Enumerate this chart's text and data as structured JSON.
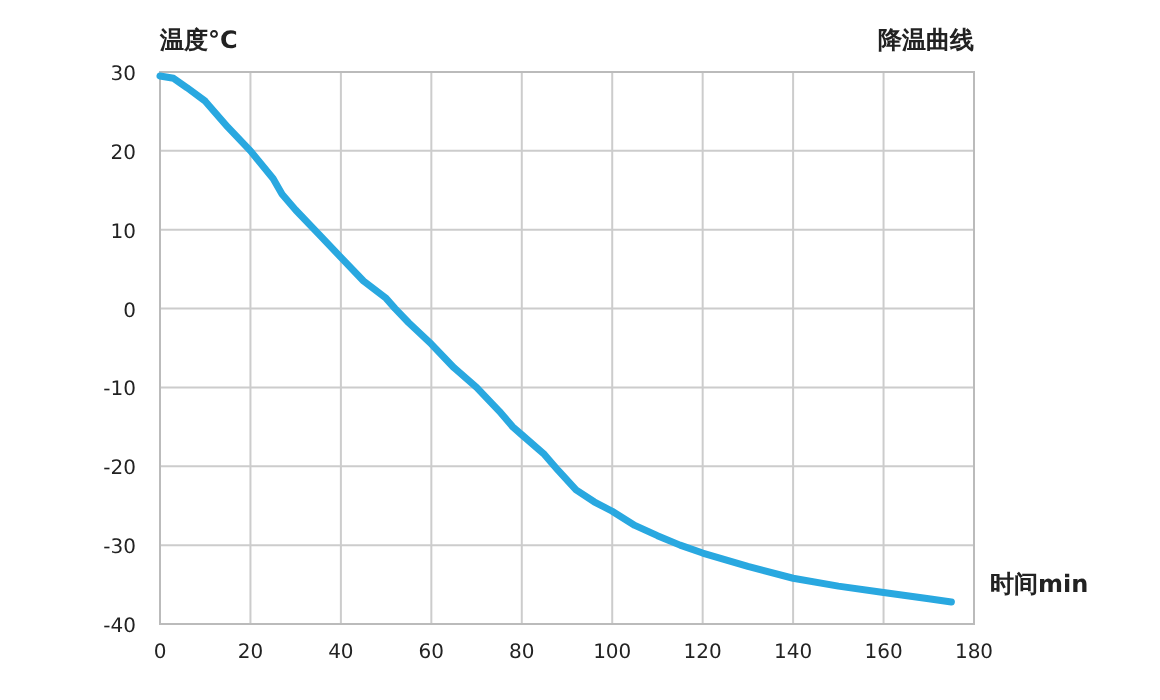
{
  "chart_data": {
    "type": "line",
    "title": "降温曲线",
    "xlabel": "时间min",
    "ylabel": "温度°C",
    "xlim": [
      0,
      180
    ],
    "ylim": [
      -40,
      30
    ],
    "xticks": [
      0,
      20,
      40,
      60,
      80,
      100,
      120,
      140,
      160,
      180
    ],
    "yticks": [
      -40,
      -30,
      -20,
      -10,
      0,
      10,
      20,
      30
    ],
    "grid": true,
    "series": [
      {
        "color": "#29a8e0",
        "x": [
          0,
          3,
          6,
          10,
          15,
          20,
          25,
          27,
          30,
          35,
          40,
          45,
          50,
          52,
          55,
          60,
          65,
          70,
          75,
          78,
          80,
          85,
          88,
          92,
          96,
          100,
          105,
          110,
          115,
          120,
          130,
          140,
          150,
          160,
          170,
          175
        ],
        "values": [
          29.5,
          29.2,
          28,
          26.3,
          23,
          20,
          16.5,
          14.5,
          12.5,
          9.5,
          6.5,
          3.5,
          1.3,
          0,
          -1.8,
          -4.5,
          -7.5,
          -10,
          -13,
          -15,
          -16,
          -18.5,
          -20.5,
          -23,
          -24.5,
          -25.7,
          -27.5,
          -28.8,
          -30,
          -31,
          -32.7,
          -34.2,
          -35.2,
          -36,
          -36.8,
          -37.2
        ]
      }
    ]
  }
}
